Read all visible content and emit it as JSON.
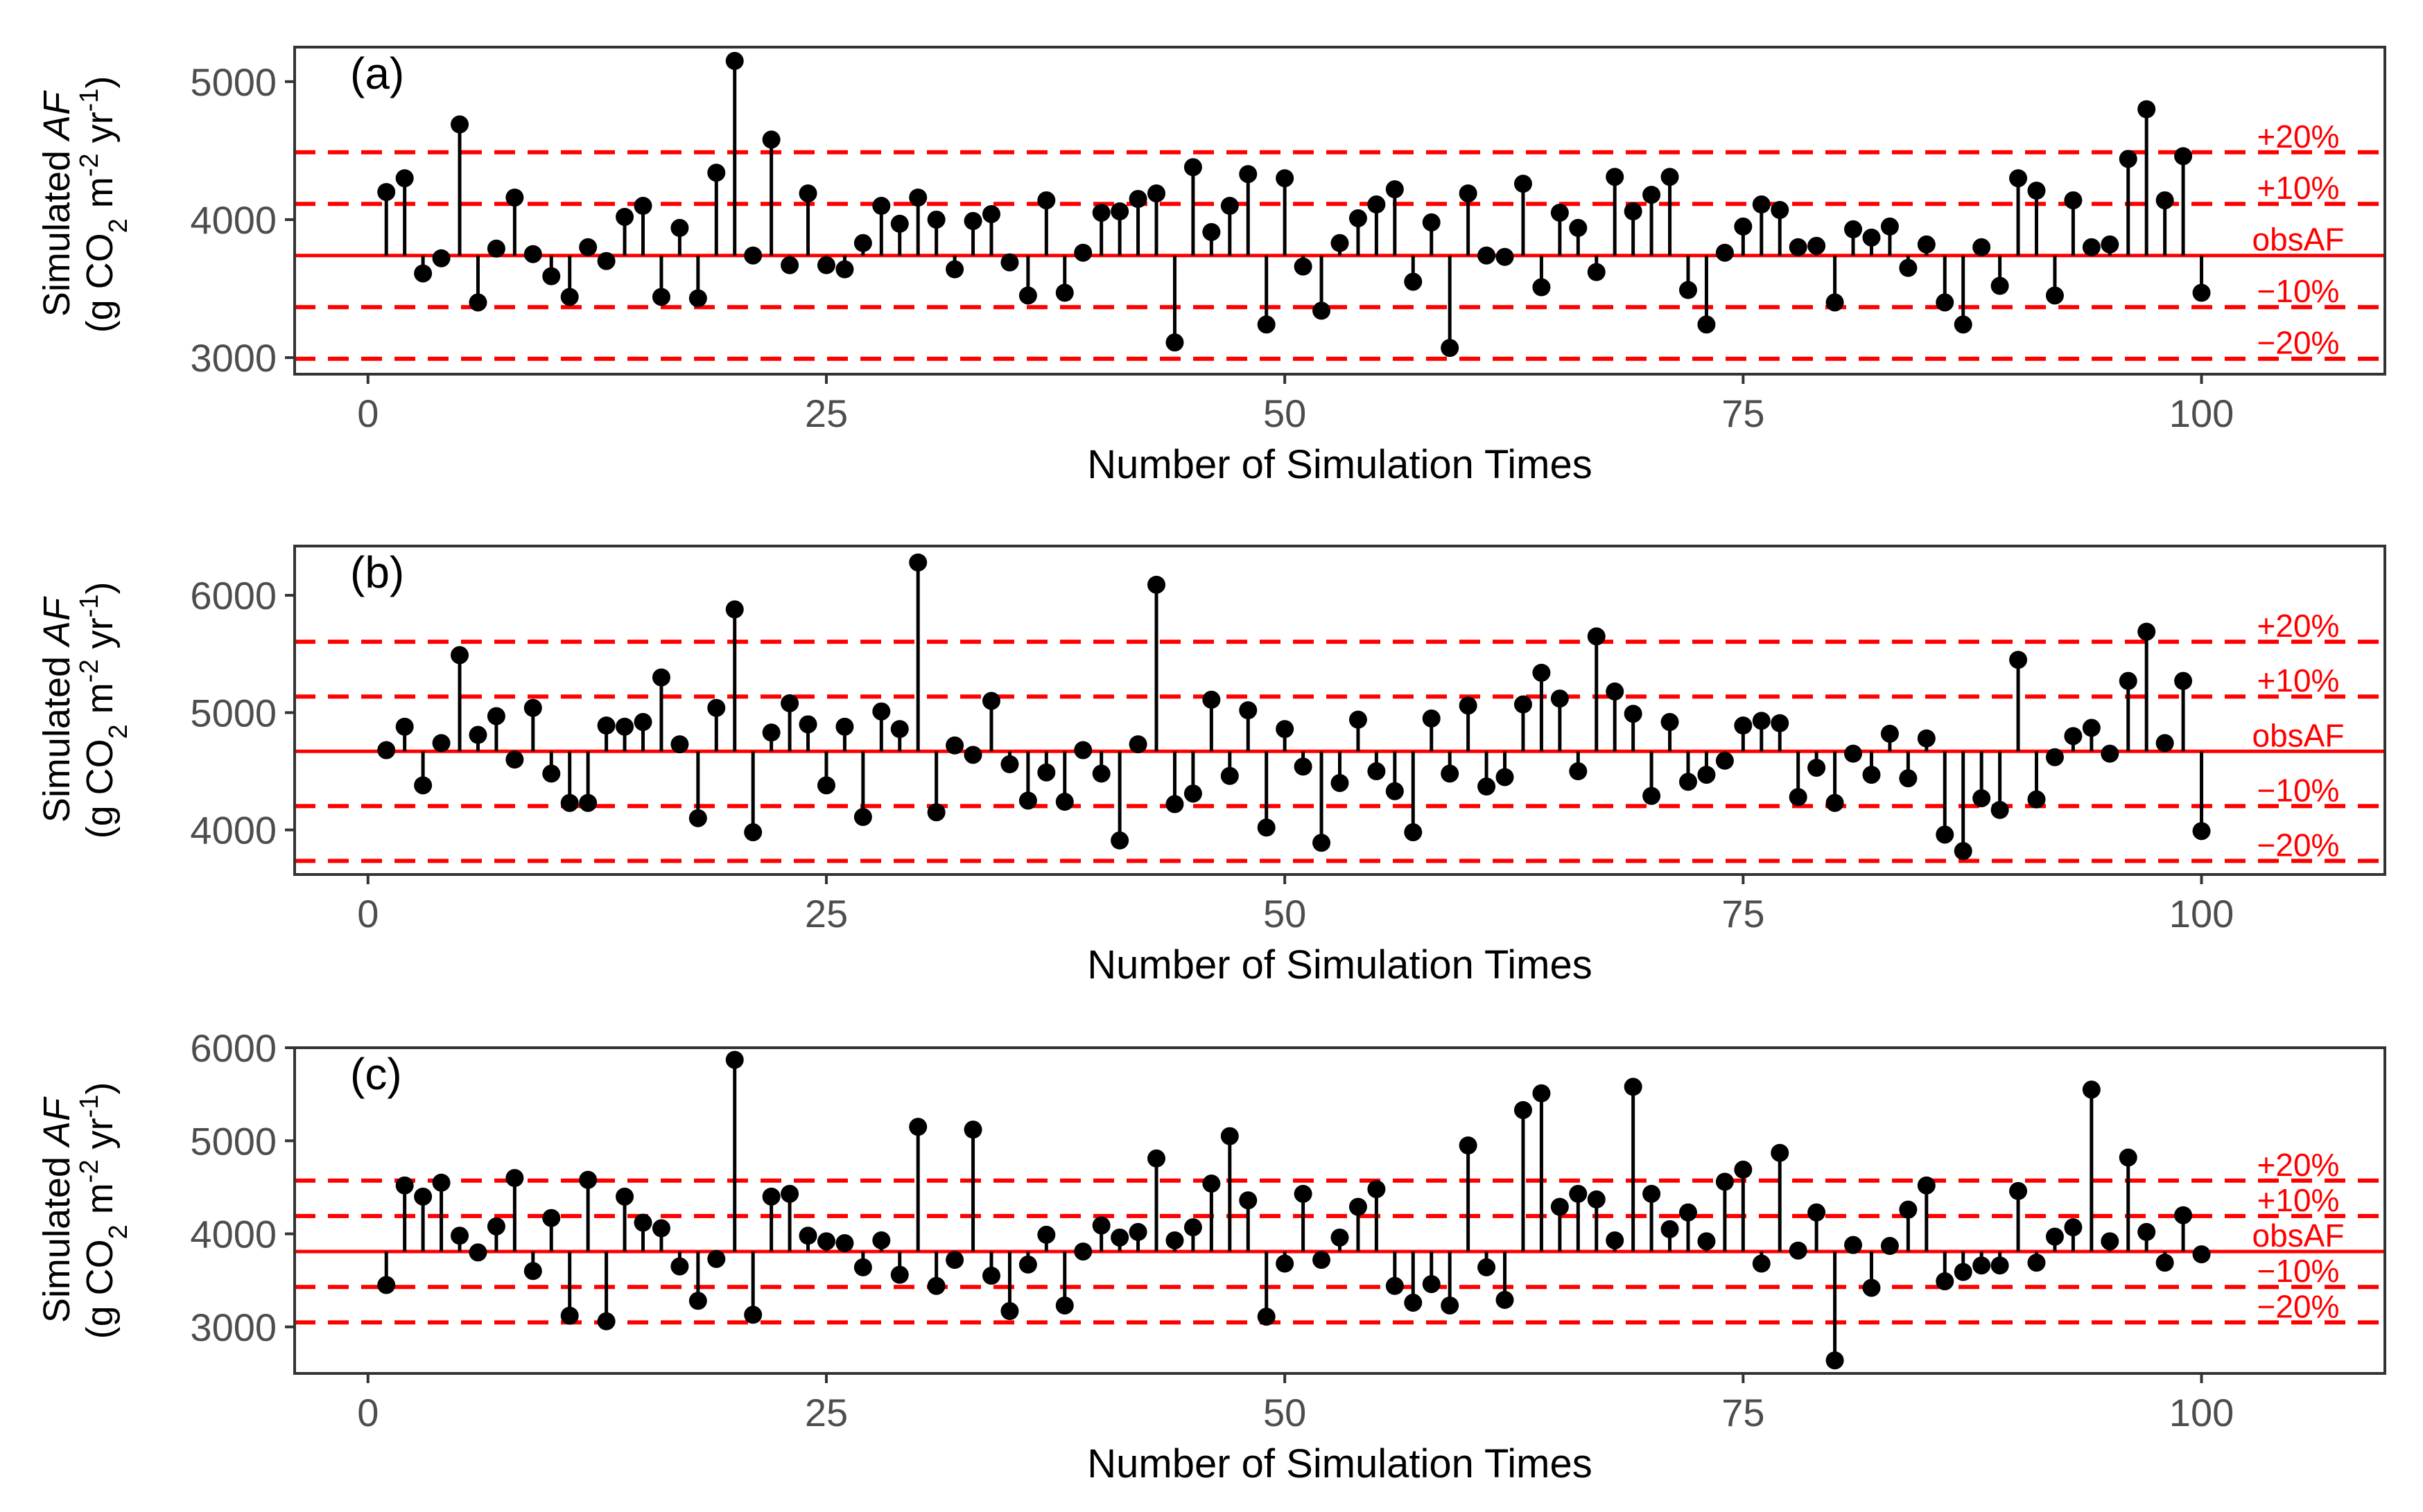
{
  "chart_data": [
    {
      "type": "stem",
      "panel_label": "(a)",
      "ylabel_line1": "Simulated ",
      "ylabel_italic": "AF",
      "ylabel_line2_parts": [
        "(g CO",
        "2",
        " m",
        "-2",
        " yr",
        "-1",
        ")"
      ],
      "xlabel": "Number of Simulation Times",
      "xlim": [
        -4,
        110
      ],
      "ylim": [
        2880,
        5250
      ],
      "xticks": [
        0,
        25,
        50,
        75,
        100
      ],
      "yticks": [
        3000,
        4000,
        5000
      ],
      "grid": false,
      "obs": 3740,
      "ref_lines": [
        {
          "value": 4488,
          "label": "+20%"
        },
        {
          "value": 4114,
          "label": "+10%"
        },
        {
          "value": 3740,
          "label": "obsAF"
        },
        {
          "value": 3366,
          "label": "−10%"
        },
        {
          "value": 2992,
          "label": "−20%"
        }
      ],
      "x": [
        1,
        2,
        3,
        4,
        5,
        6,
        7,
        8,
        9,
        10,
        11,
        12,
        13,
        14,
        15,
        16,
        17,
        18,
        19,
        20,
        21,
        22,
        23,
        24,
        25,
        26,
        27,
        28,
        29,
        30,
        31,
        32,
        33,
        34,
        35,
        36,
        37,
        38,
        39,
        40,
        41,
        42,
        43,
        44,
        45,
        46,
        47,
        48,
        49,
        50,
        51,
        52,
        53,
        54,
        55,
        56,
        57,
        58,
        59,
        60,
        61,
        62,
        63,
        64,
        65,
        66,
        67,
        68,
        69,
        70,
        71,
        72,
        73,
        74,
        75,
        76,
        77,
        78,
        79,
        80,
        81,
        82,
        83,
        84,
        85,
        86,
        87,
        88,
        89,
        90,
        91,
        92,
        93,
        94,
        95,
        96,
        97,
        98,
        99,
        100
      ],
      "y": [
        4200,
        4300,
        3610,
        3720,
        4690,
        3400,
        3790,
        4160,
        3750,
        3590,
        3440,
        3800,
        3700,
        4020,
        4100,
        3440,
        3940,
        3430,
        4340,
        5150,
        3740,
        4580,
        3670,
        4190,
        3670,
        3640,
        3830,
        4100,
        3970,
        4160,
        4000,
        3640,
        3990,
        4040,
        3690,
        3450,
        4140,
        3470,
        3760,
        4050,
        4060,
        4150,
        4190,
        3110,
        4380,
        3910,
        4100,
        4330,
        3240,
        4300,
        3660,
        3340,
        3830,
        4010,
        4110,
        4220,
        3550,
        3980,
        3070,
        4190,
        3740,
        3730,
        4260,
        3510,
        4050,
        3940,
        3620,
        4310,
        4060,
        4180,
        4310,
        3490,
        3240,
        3760,
        3950,
        4110,
        4070,
        3800,
        3810,
        3400,
        3930,
        3870,
        3950,
        3650,
        3820,
        3400,
        3240,
        3800,
        3520,
        4300,
        4210,
        3450,
        4140,
        3800,
        3820,
        4440,
        4800,
        4140,
        4460,
        3470
      ]
    },
    {
      "type": "stem",
      "panel_label": "(b)",
      "ylabel_line1": "Simulated ",
      "ylabel_italic": "AF",
      "ylabel_line2_parts": [
        "(g CO",
        "2",
        " m",
        "-2",
        " yr",
        "-1",
        ")"
      ],
      "xlabel": "Number of Simulation Times",
      "xlim": [
        -4,
        110
      ],
      "ylim": [
        3620,
        6420
      ],
      "xticks": [
        0,
        25,
        50,
        75,
        100
      ],
      "yticks": [
        4000,
        5000,
        6000
      ],
      "grid": false,
      "obs": 4670,
      "ref_lines": [
        {
          "value": 5604,
          "label": "+20%"
        },
        {
          "value": 5137,
          "label": "+10%"
        },
        {
          "value": 4670,
          "label": "obsAF"
        },
        {
          "value": 4203,
          "label": "−10%"
        },
        {
          "value": 3736,
          "label": "−20%"
        }
      ],
      "x": [
        1,
        2,
        3,
        4,
        5,
        6,
        7,
        8,
        9,
        10,
        11,
        12,
        13,
        14,
        15,
        16,
        17,
        18,
        19,
        20,
        21,
        22,
        23,
        24,
        25,
        26,
        27,
        28,
        29,
        30,
        31,
        32,
        33,
        34,
        35,
        36,
        37,
        38,
        39,
        40,
        41,
        42,
        43,
        44,
        45,
        46,
        47,
        48,
        49,
        50,
        51,
        52,
        53,
        54,
        55,
        56,
        57,
        58,
        59,
        60,
        61,
        62,
        63,
        64,
        65,
        66,
        67,
        68,
        69,
        70,
        71,
        72,
        73,
        74,
        75,
        76,
        77,
        78,
        79,
        80,
        81,
        82,
        83,
        84,
        85,
        86,
        87,
        88,
        89,
        90,
        91,
        92,
        93,
        94,
        95,
        96,
        97,
        98,
        99,
        100
      ],
      "y": [
        4680,
        4880,
        4380,
        4740,
        5490,
        4810,
        4970,
        4600,
        5040,
        4480,
        4230,
        4230,
        4890,
        4880,
        4920,
        5300,
        4730,
        4100,
        5040,
        5880,
        3980,
        4830,
        5080,
        4900,
        4380,
        4880,
        4110,
        5010,
        4860,
        6280,
        4150,
        4720,
        4640,
        5100,
        4560,
        4250,
        4490,
        4240,
        4680,
        4480,
        3910,
        4730,
        6090,
        4220,
        4310,
        5110,
        4460,
        5020,
        4020,
        4860,
        4540,
        3890,
        4400,
        4940,
        4500,
        4330,
        3980,
        4950,
        4480,
        5060,
        4370,
        4450,
        5070,
        5340,
        5120,
        4500,
        5650,
        5180,
        4990,
        4290,
        4920,
        4410,
        4470,
        4590,
        4890,
        4930,
        4910,
        4280,
        4530,
        4230,
        4650,
        4470,
        4820,
        4440,
        4780,
        3960,
        3820,
        4270,
        4170,
        5450,
        4260,
        4620,
        4800,
        4870,
        4650,
        5270,
        5690,
        4740,
        5270,
        3990
      ]
    },
    {
      "type": "stem",
      "panel_label": "(c)",
      "ylabel_line1": "Simulated ",
      "ylabel_italic": "AF",
      "ylabel_line2_parts": [
        "(g CO",
        "2",
        " m",
        "-2",
        " yr",
        "-1",
        ")"
      ],
      "xlabel": "Number of Simulation Times",
      "xlim": [
        -4,
        110
      ],
      "ylim": [
        2500,
        6000
      ],
      "xticks": [
        0,
        25,
        50,
        75,
        100
      ],
      "yticks": [
        3000,
        4000,
        5000,
        6000
      ],
      "grid": false,
      "obs": 3810,
      "ref_lines": [
        {
          "value": 4572,
          "label": "+20%"
        },
        {
          "value": 4191,
          "label": "+10%"
        },
        {
          "value": 3810,
          "label": "obsAF"
        },
        {
          "value": 3429,
          "label": "−10%"
        },
        {
          "value": 3048,
          "label": "−20%"
        }
      ],
      "x": [
        1,
        2,
        3,
        4,
        5,
        6,
        7,
        8,
        9,
        10,
        11,
        12,
        13,
        14,
        15,
        16,
        17,
        18,
        19,
        20,
        21,
        22,
        23,
        24,
        25,
        26,
        27,
        28,
        29,
        30,
        31,
        32,
        33,
        34,
        35,
        36,
        37,
        38,
        39,
        40,
        41,
        42,
        43,
        44,
        45,
        46,
        47,
        48,
        49,
        50,
        51,
        52,
        53,
        54,
        55,
        56,
        57,
        58,
        59,
        60,
        61,
        62,
        63,
        64,
        65,
        66,
        67,
        68,
        69,
        70,
        71,
        72,
        73,
        74,
        75,
        76,
        77,
        78,
        79,
        80,
        81,
        82,
        83,
        84,
        85,
        86,
        87,
        88,
        89,
        90,
        91,
        92,
        93,
        94,
        95,
        96,
        97,
        98,
        99,
        100
      ],
      "y": [
        3450,
        4520,
        4400,
        4550,
        3980,
        3800,
        4080,
        4600,
        3600,
        4170,
        3120,
        4580,
        3060,
        4400,
        4120,
        4060,
        3650,
        3280,
        3730,
        5870,
        3130,
        4400,
        4430,
        3980,
        3920,
        3900,
        3640,
        3930,
        3560,
        5150,
        3440,
        3720,
        5120,
        3550,
        3170,
        3670,
        3990,
        3230,
        3810,
        4090,
        3960,
        4020,
        4810,
        3930,
        4070,
        4540,
        5050,
        4360,
        3110,
        3680,
        4430,
        3720,
        3960,
        4290,
        4480,
        3440,
        3260,
        3460,
        3230,
        4950,
        3640,
        3290,
        5330,
        5510,
        4290,
        4430,
        4370,
        3930,
        5580,
        4430,
        4050,
        4230,
        3920,
        4560,
        4690,
        3680,
        4870,
        3820,
        4230,
        2640,
        3880,
        3420,
        3870,
        4260,
        4520,
        3490,
        3590,
        3660,
        3660,
        4460,
        3690,
        3970,
        4070,
        5550,
        3920,
        4820,
        4020,
        3690,
        4200,
        3780
      ]
    }
  ]
}
